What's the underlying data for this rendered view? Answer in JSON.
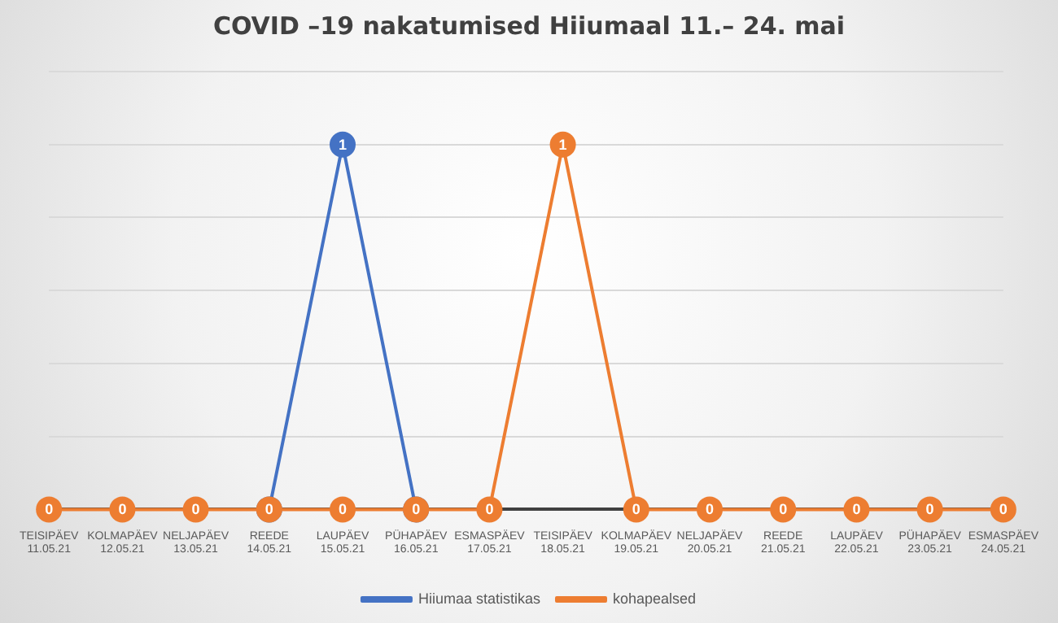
{
  "chart_data": {
    "type": "line",
    "title": "COVID –19 nakatumised Hiiumaal 11.– 24. mai",
    "categories": [
      "TEISIPÄEV 11.05.21",
      "KOLMAPÄEV 12.05.21",
      "NELJAPÄEV 13.05.21",
      "REEDE 14.05.21",
      "LAUPÄEV 15.05.21",
      "PÜHAPÄEV 16.05.21",
      "ESMASPÄEV 17.05.21",
      "TEISIPÄEV 18.05.21",
      "KOLMAPÄEV 19.05.21",
      "NELJAPÄEV 20.05.21",
      "REEDE 21.05.21",
      "LAUPÄEV 22.05.21",
      "PÜHAPÄEV 23.05.21",
      "ESMASPÄEV 24.05.21"
    ],
    "series": [
      {
        "name": "Hiiumaa statistikas",
        "color": "#4472c4",
        "values": [
          null,
          null,
          null,
          0,
          1,
          0,
          null,
          null,
          null,
          null,
          null,
          null,
          null,
          null
        ],
        "value_labels": [
          null,
          null,
          null,
          null,
          "1",
          null,
          null,
          null,
          null,
          null,
          null,
          null,
          null,
          null
        ]
      },
      {
        "name": "kohapealsed",
        "color": "#ed7d31",
        "values": [
          0,
          0,
          0,
          0,
          0,
          0,
          0,
          1,
          0,
          0,
          0,
          0,
          0,
          0
        ],
        "value_labels": [
          "0",
          "0",
          "0",
          "0",
          "0",
          "0",
          "0",
          "1",
          "0",
          "0",
          "0",
          "0",
          "0",
          "0"
        ]
      }
    ],
    "ylim": [
      0,
      1.2
    ],
    "yticks": [
      {
        "value": 0,
        "label": null
      },
      {
        "value": 0.2,
        "label": null
      },
      {
        "value": 0.4,
        "label": null
      },
      {
        "value": 0.6,
        "label": null
      },
      {
        "value": 0.8,
        "label": null
      },
      {
        "value": 1,
        "label": null
      },
      {
        "value": 1.2,
        "label": null
      }
    ],
    "tick_labels": "x",
    "grid": "y",
    "legend": "bottom",
    "marker": "circle",
    "line_style": "solid"
  }
}
